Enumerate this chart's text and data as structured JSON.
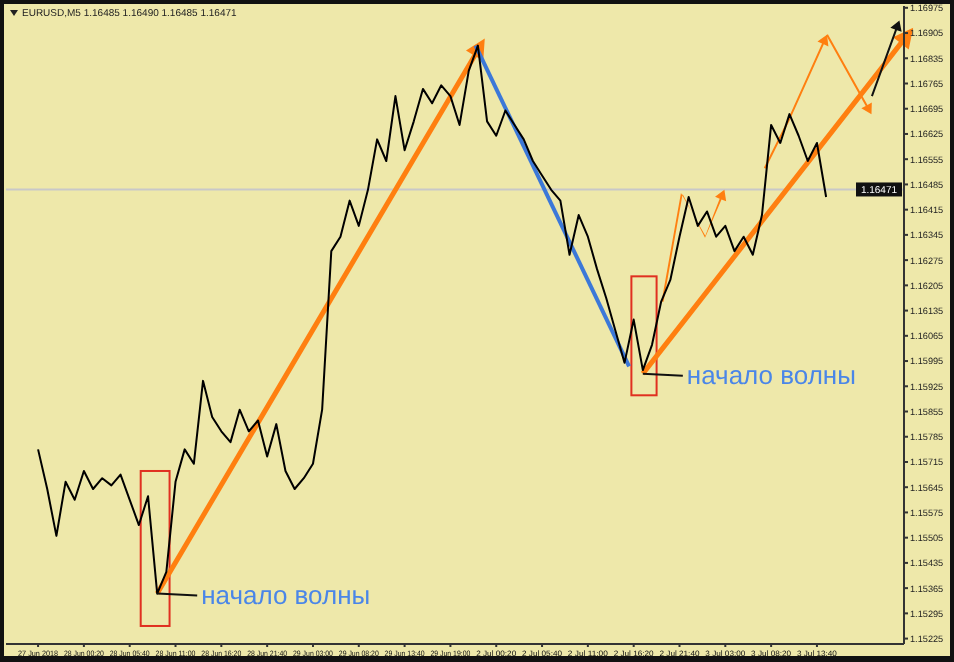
{
  "chart_data": {
    "type": "line",
    "title": "EURUSD,M5 1.16485 1.16490 1.16485 1.16471",
    "categories": [
      null,
      null,
      null,
      "27 Jun 2018",
      null,
      null,
      null,
      null,
      "28 Jun 00:20",
      null,
      null,
      null,
      null,
      "28 Jun 05:40",
      null,
      null,
      null,
      null,
      "28 Jun 11:00",
      null,
      null,
      null,
      null,
      "28 Jun 16:20",
      null,
      null,
      null,
      null,
      "28 Jun 21:40",
      null,
      null,
      null,
      null,
      "29 Jun 03:00",
      null,
      null,
      null,
      null,
      "29 Jun 08:20",
      null,
      null,
      null,
      null,
      "29 Jun 13:40",
      null,
      null,
      null,
      null,
      "29 Jun 19:00",
      null,
      null,
      null,
      null,
      "2 Jul 00:20",
      null,
      null,
      null,
      null,
      "2 Jul 05:40",
      null,
      null,
      null,
      null,
      "2 Jul 11:00",
      null,
      null,
      null,
      null,
      "2 Jul 16:20",
      null,
      null,
      null,
      null,
      "2 Jul 21:40",
      null,
      null,
      null,
      null,
      "3 Jul 03:00",
      null,
      null,
      null,
      null,
      "3 Jul 08:20",
      null,
      null,
      null,
      null,
      "3 Jul 13:40",
      null,
      null,
      null,
      null,
      null,
      null,
      null,
      null,
      null
    ],
    "series": [
      {
        "color": "#000000",
        "values": [
          null,
          null,
          null,
          1.1575,
          1.1564,
          1.1551,
          1.1566,
          1.1561,
          1.1569,
          1.1564,
          1.1567,
          1.1565,
          1.1568,
          1.1561,
          1.1554,
          1.1562,
          1.1535,
          1.1541,
          1.1566,
          1.1575,
          1.1571,
          1.1594,
          1.1584,
          1.158,
          1.1577,
          1.1586,
          1.158,
          1.1583,
          1.1573,
          1.1582,
          1.1569,
          1.1564,
          1.1567,
          1.1571,
          1.1586,
          1.163,
          1.1634,
          1.1644,
          1.1637,
          1.1647,
          1.1661,
          1.1655,
          1.1673,
          1.1658,
          1.1666,
          1.1675,
          1.1671,
          1.1676,
          1.1673,
          1.1665,
          1.168,
          1.1687,
          1.1666,
          1.1662,
          1.1669,
          1.1665,
          1.1661,
          1.1655,
          1.1651,
          1.1647,
          1.1644,
          1.1629,
          1.164,
          1.1634,
          1.1625,
          1.1617,
          1.1608,
          1.1599,
          1.1611,
          1.1597,
          1.1604,
          1.1616,
          1.1622,
          1.1634,
          1.1645,
          1.1637,
          1.1641,
          1.1634,
          1.1637,
          1.163,
          1.1634,
          1.1629,
          1.164,
          1.1665,
          1.166,
          1.1668,
          1.1662,
          1.1655,
          1.166,
          1.1645,
          null,
          null,
          null,
          null,
          null,
          null,
          null,
          null
        ]
      }
    ],
    "ylim": [
      1.1521,
      1.1698
    ],
    "yticks": [
      1.15225,
      1.15295,
      1.15365,
      1.15435,
      1.15505,
      1.15575,
      1.15645,
      1.15715,
      1.15785,
      1.15855,
      1.15925,
      1.15995,
      1.16065,
      1.16135,
      1.16205,
      1.16275,
      1.16345,
      1.16415,
      1.16485,
      1.16555,
      1.16625,
      1.16695,
      1.16765,
      1.16835,
      1.16905,
      1.16975
    ],
    "ref_lines": [
      {
        "axis": "y",
        "value": 1.16471,
        "label": "1.16471",
        "color": "#c8c8c8"
      }
    ],
    "annotations": [
      "начало волны",
      "начало волны"
    ],
    "grid": false,
    "marker": "none",
    "line_style": "solid"
  }
}
